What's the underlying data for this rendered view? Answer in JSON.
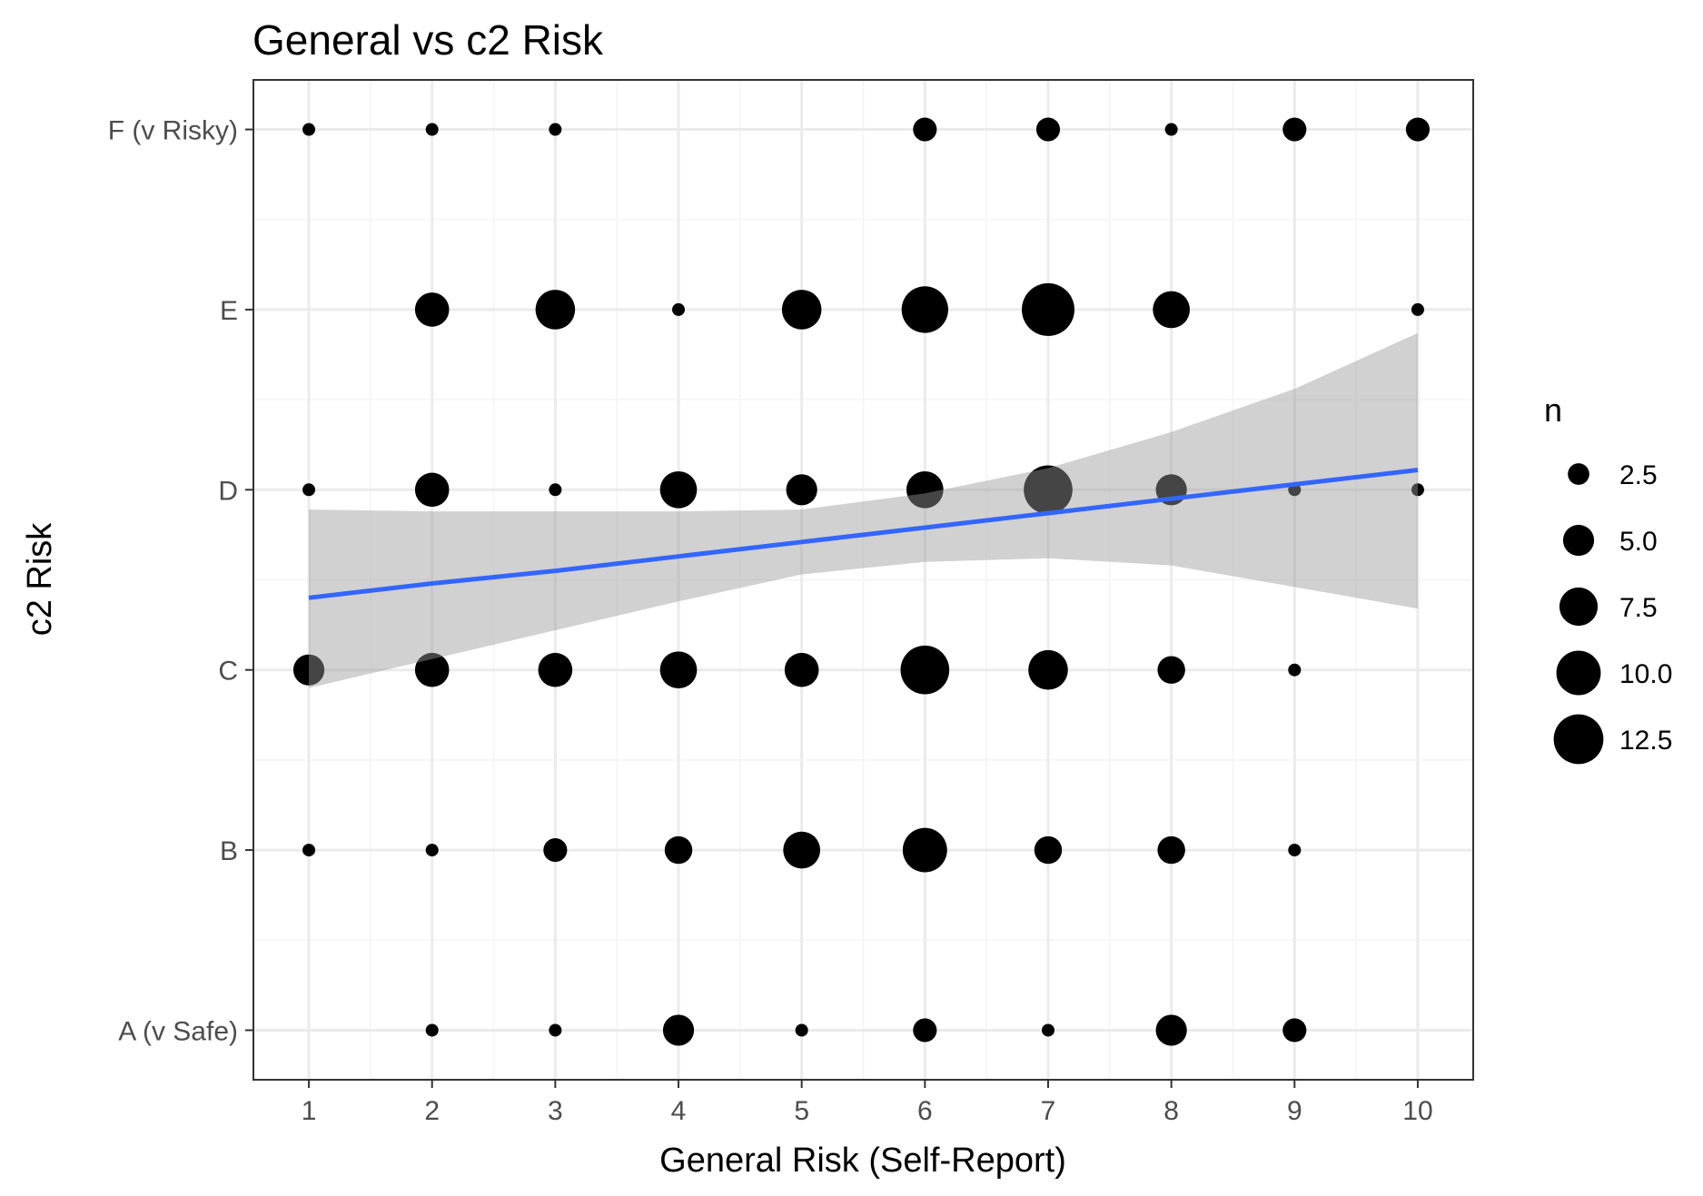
{
  "chart_data": {
    "type": "scatter",
    "title": "General vs c2 Risk",
    "xlabel": "General Risk (Self-Report)",
    "ylabel": "c2 Risk",
    "x_ticks": [
      "1",
      "2",
      "3",
      "4",
      "5",
      "6",
      "7",
      "8",
      "9",
      "10"
    ],
    "y_categories": [
      "A (v Safe)",
      "B",
      "C",
      "D",
      "E",
      "F (v Risky)"
    ],
    "xlim": [
      0.55,
      10.45
    ],
    "ylim": [
      0.725,
      6.275
    ],
    "grid": true,
    "size_legend": {
      "title": "n",
      "values": [
        2.5,
        5.0,
        7.5,
        10.0,
        12.5
      ],
      "labels": [
        "2.5",
        "5.0",
        "7.5",
        "10.0",
        "12.5"
      ],
      "placement": "right"
    },
    "points": [
      {
        "x": 1,
        "y": "F (v Risky)",
        "n": 1
      },
      {
        "x": 2,
        "y": "F (v Risky)",
        "n": 1
      },
      {
        "x": 3,
        "y": "F (v Risky)",
        "n": 1
      },
      {
        "x": 6,
        "y": "F (v Risky)",
        "n": 3
      },
      {
        "x": 7,
        "y": "F (v Risky)",
        "n": 3
      },
      {
        "x": 8,
        "y": "F (v Risky)",
        "n": 1
      },
      {
        "x": 9,
        "y": "F (v Risky)",
        "n": 3
      },
      {
        "x": 10,
        "y": "F (v Risky)",
        "n": 3
      },
      {
        "x": 2,
        "y": "E",
        "n": 6
      },
      {
        "x": 3,
        "y": "E",
        "n": 8
      },
      {
        "x": 4,
        "y": "E",
        "n": 1
      },
      {
        "x": 5,
        "y": "E",
        "n": 8
      },
      {
        "x": 6,
        "y": "E",
        "n": 11
      },
      {
        "x": 7,
        "y": "E",
        "n": 14
      },
      {
        "x": 8,
        "y": "E",
        "n": 7
      },
      {
        "x": 10,
        "y": "E",
        "n": 1
      },
      {
        "x": 1,
        "y": "D",
        "n": 1
      },
      {
        "x": 2,
        "y": "D",
        "n": 6
      },
      {
        "x": 3,
        "y": "D",
        "n": 1
      },
      {
        "x": 4,
        "y": "D",
        "n": 7
      },
      {
        "x": 5,
        "y": "D",
        "n": 5
      },
      {
        "x": 6,
        "y": "D",
        "n": 7
      },
      {
        "x": 7,
        "y": "D",
        "n": 12
      },
      {
        "x": 8,
        "y": "D",
        "n": 5
      },
      {
        "x": 9,
        "y": "D",
        "n": 1
      },
      {
        "x": 10,
        "y": "D",
        "n": 1
      },
      {
        "x": 1,
        "y": "C",
        "n": 5
      },
      {
        "x": 2,
        "y": "C",
        "n": 6
      },
      {
        "x": 3,
        "y": "C",
        "n": 6
      },
      {
        "x": 4,
        "y": "C",
        "n": 7
      },
      {
        "x": 5,
        "y": "C",
        "n": 6
      },
      {
        "x": 6,
        "y": "C",
        "n": 12
      },
      {
        "x": 7,
        "y": "C",
        "n": 8
      },
      {
        "x": 8,
        "y": "C",
        "n": 4
      },
      {
        "x": 9,
        "y": "C",
        "n": 1
      },
      {
        "x": 1,
        "y": "B",
        "n": 1
      },
      {
        "x": 2,
        "y": "B",
        "n": 1
      },
      {
        "x": 3,
        "y": "B",
        "n": 3
      },
      {
        "x": 4,
        "y": "B",
        "n": 4
      },
      {
        "x": 5,
        "y": "B",
        "n": 7
      },
      {
        "x": 6,
        "y": "B",
        "n": 10
      },
      {
        "x": 7,
        "y": "B",
        "n": 4
      },
      {
        "x": 8,
        "y": "B",
        "n": 4
      },
      {
        "x": 9,
        "y": "B",
        "n": 1
      },
      {
        "x": 2,
        "y": "A (v Safe)",
        "n": 1
      },
      {
        "x": 3,
        "y": "A (v Safe)",
        "n": 1
      },
      {
        "x": 4,
        "y": "A (v Safe)",
        "n": 5
      },
      {
        "x": 5,
        "y": "A (v Safe)",
        "n": 1
      },
      {
        "x": 6,
        "y": "A (v Safe)",
        "n": 3
      },
      {
        "x": 7,
        "y": "A (v Safe)",
        "n": 1
      },
      {
        "x": 8,
        "y": "A (v Safe)",
        "n": 5
      },
      {
        "x": 9,
        "y": "A (v Safe)",
        "n": 3
      }
    ],
    "trend": {
      "type": "linear",
      "color": "#3366FF",
      "band_color": "#999999",
      "x": [
        1,
        2,
        3,
        4,
        5,
        6,
        7,
        8,
        9,
        10
      ],
      "fit": [
        3.4,
        3.48,
        3.55,
        3.63,
        3.71,
        3.79,
        3.87,
        3.95,
        4.03,
        4.11
      ],
      "lower": [
        2.9,
        3.06,
        3.22,
        3.38,
        3.53,
        3.6,
        3.62,
        3.58,
        3.46,
        3.34
      ],
      "upper": [
        3.89,
        3.88,
        3.88,
        3.88,
        3.89,
        3.98,
        4.12,
        4.32,
        4.56,
        4.87
      ]
    },
    "colors": {
      "points": "#000000",
      "grid": "#EBEBEB",
      "panel_border": "#333333"
    }
  }
}
